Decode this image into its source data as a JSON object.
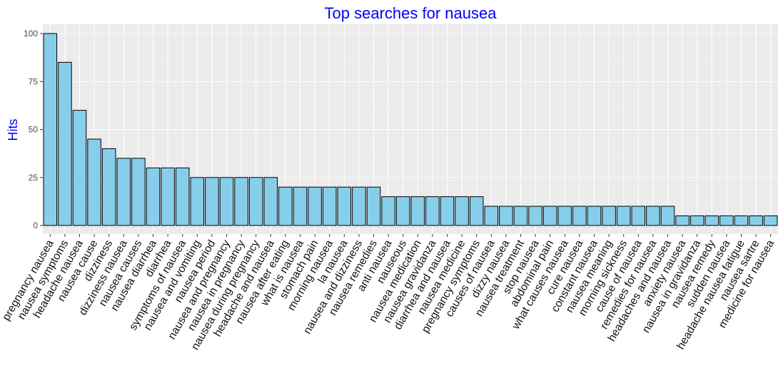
{
  "chart_data": {
    "type": "bar",
    "title": "Top searches for nausea",
    "xlabel": "",
    "ylabel": "Hits",
    "ylim": [
      0,
      105
    ],
    "yticks": [
      0,
      25,
      50,
      75,
      100
    ],
    "grid": true,
    "legend": "none",
    "colors": {
      "bar_fill": "#87ceeb",
      "bar_stroke": "#000000",
      "title": "#0000ff",
      "ylabel": "#0000ff",
      "panel": "#ebebeb"
    },
    "categories": [
      "pregnancy nausea",
      "nausea symptoms",
      "headache nausea",
      "nausea cause",
      "dizziness",
      "dizziness nausea",
      "nausea causes",
      "nausea diarrhea",
      "diarrhea",
      "symptoms of nausea",
      "nausea and vomiting",
      "nausea period",
      "nausea and pregnancy",
      "nausea in pregnancy",
      "nausea during pregnancy",
      "headache and nausea",
      "nausea after eating",
      "what is nausea",
      "stomach pain",
      "morning nausea",
      "la nausea",
      "nausea and dizziness",
      "nausea remedies",
      "anti nausea",
      "nauseous",
      "nausea medication",
      "nausea gravidanza",
      "diarrhea and nausea",
      "nausea medicine",
      "pregnancy symptoms",
      "causes of nausea",
      "dizzy nausea",
      "nausea treatment",
      "stop nausea",
      "abdominal pain",
      "what causes nausea",
      "cure nausea",
      "constant nausea",
      "nausea meaning",
      "morning sickness",
      "cause of nausea",
      "remedies for nausea",
      "headaches and nausea",
      "anxiety nausea",
      "nausea in gravidanza",
      "nausea remedy",
      "sudden nausea",
      "headache nausea fatigue",
      "nausea sartre",
      "medicine for nausea"
    ],
    "values": [
      100,
      85,
      60,
      45,
      40,
      35,
      35,
      30,
      30,
      30,
      25,
      25,
      25,
      25,
      25,
      25,
      20,
      20,
      20,
      20,
      20,
      20,
      20,
      15,
      15,
      15,
      15,
      15,
      15,
      15,
      10,
      10,
      10,
      10,
      10,
      10,
      10,
      10,
      10,
      10,
      10,
      10,
      10,
      5,
      5,
      5,
      5,
      5,
      5,
      5
    ]
  }
}
